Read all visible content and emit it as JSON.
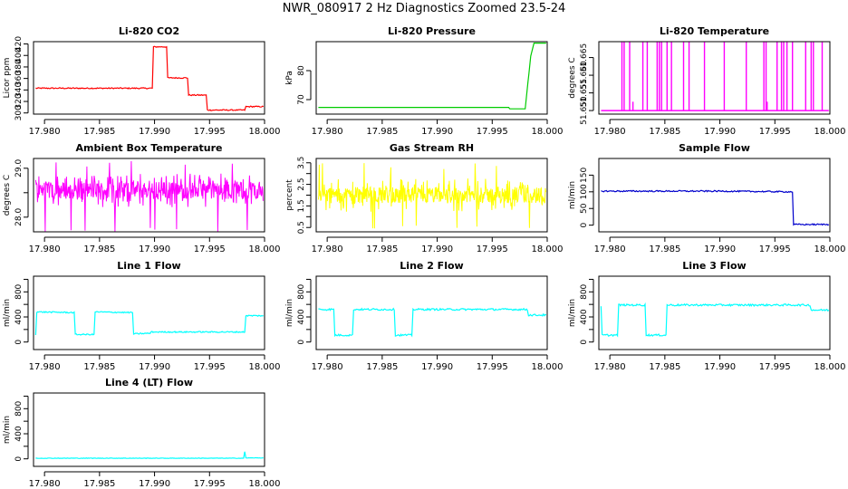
{
  "title": "NWR_080917  2 Hz Diagnostics Zoomed 23.5-24",
  "colors": {
    "red": "#ff0000",
    "green": "#00cc00",
    "magenta": "#ff00ff",
    "yellow": "#ffff00",
    "blue": "#0000cc",
    "cyan": "#00ffff",
    "frame": "#000000"
  },
  "chart_data": [
    {
      "type": "line",
      "title": "Li-820 CO2",
      "xlabel": "",
      "ylabel": "Licor ppm",
      "xlim": [
        17.979,
        18.0
      ],
      "ylim": [
        298,
        424
      ],
      "xticks": [
        "17.980",
        "17.985",
        "17.990",
        "17.995",
        "18.000"
      ],
      "yticks": [
        "300",
        "320",
        "340",
        "360",
        "380",
        "400",
        "420"
      ],
      "color": "red",
      "series": [
        {
          "x": [
            17.9792,
            17.9898,
            17.9899,
            17.9911,
            17.9912,
            17.993,
            17.9931,
            17.9947,
            17.9948,
            17.9982,
            17.9983,
            17.9999
          ],
          "y": [
            343,
            343,
            415,
            415,
            361,
            361,
            331,
            331,
            305,
            305,
            311,
            311
          ]
        }
      ],
      "noise_amplitude": 1
    },
    {
      "type": "line",
      "title": "Li-820 Pressure",
      "xlabel": "",
      "ylabel": "kPa",
      "xlim": [
        17.979,
        18.0
      ],
      "ylim": [
        65,
        90
      ],
      "xticks": [
        "17.980",
        "17.985",
        "17.990",
        "17.995",
        "18.000"
      ],
      "yticks": [
        "70",
        "80"
      ],
      "color": "green",
      "series": [
        {
          "x": [
            17.9792,
            17.9965,
            17.9966,
            17.998,
            17.9985,
            17.9988,
            17.9999
          ],
          "y": [
            67.3,
            67.3,
            66.8,
            66.8,
            85,
            89.5,
            89.5
          ]
        }
      ],
      "noise_amplitude": 0
    },
    {
      "type": "line",
      "title": "Li-820 Temperature",
      "xlabel": "",
      "ylabel": "degrees C",
      "xlim": [
        17.979,
        18.0
      ],
      "ylim": [
        51.649,
        51.6695
      ],
      "xticks": [
        "17.980",
        "17.985",
        "17.990",
        "17.995",
        "18.000"
      ],
      "yticks": [
        "51.650",
        "51.655",
        "51.660",
        "51.665"
      ],
      "color": "magenta",
      "baseline": 51.65,
      "spike_top": 51.6695,
      "spikes_x": [
        17.9811,
        17.9813,
        17.9818,
        17.983,
        17.9834,
        17.9843,
        17.9845,
        17.9847,
        17.9852,
        17.9856,
        17.9867,
        17.9872,
        17.9886,
        17.9904,
        17.9924,
        17.994,
        17.9942,
        17.9952,
        17.9956,
        17.9958,
        17.9961,
        17.9966,
        17.9978,
        17.9983,
        17.9985,
        17.9993
      ],
      "short_spikes": [
        {
          "x": 17.9821,
          "y": 51.6525
        },
        {
          "x": 17.9943,
          "y": 51.6525
        }
      ]
    },
    {
      "type": "line",
      "title": "Ambient Box Temperature",
      "xlabel": "",
      "ylabel": "degrees C",
      "xlim": [
        17.979,
        18.0
      ],
      "ylim": [
        27.7,
        29.2
      ],
      "xticks": [
        "17.980",
        "17.985",
        "17.990",
        "17.995",
        "18.000"
      ],
      "yticks": [
        "28.0",
        "",
        "29.0"
      ],
      "ytick_values": [
        28.0,
        28.5,
        29.0
      ],
      "color": "magenta",
      "noisy": {
        "mean": 28.55,
        "amplitude": 0.25,
        "outlier_low": 27.7,
        "outlier_high": 29.15
      }
    },
    {
      "type": "line",
      "title": "Gas Stream RH",
      "xlabel": "",
      "ylabel": "percent",
      "xlim": [
        17.979,
        18.0
      ],
      "ylim": [
        0.3,
        3.7
      ],
      "xticks": [
        "17.980",
        "17.985",
        "17.990",
        "17.995",
        "18.000"
      ],
      "yticks": [
        "0.5",
        "1.5",
        "2.5",
        "3.5"
      ],
      "ytick_values": [
        0.5,
        1.5,
        2.5,
        3.5
      ],
      "minor_yticks": [
        1.0,
        2.0,
        3.0
      ],
      "color": "yellow",
      "noisy": {
        "mean": 2.0,
        "amplitude": 0.55,
        "outlier_low": 0.45,
        "outlier_high": 3.5
      }
    },
    {
      "type": "line",
      "title": "Sample Flow",
      "xlabel": "",
      "ylabel": "ml/min",
      "xlim": [
        17.979,
        18.0
      ],
      "ylim": [
        -20,
        200
      ],
      "xticks": [
        "17.980",
        "17.985",
        "17.990",
        "17.995",
        "18.000"
      ],
      "yticks": [
        "0",
        "50",
        "100",
        "150"
      ],
      "color": "blue",
      "series": [
        {
          "x": [
            17.9792,
            17.99,
            17.9966,
            17.9967,
            17.9999
          ],
          "y": [
            102,
            102,
            100,
            2,
            2
          ]
        }
      ],
      "noise_amplitude": 2
    },
    {
      "type": "line",
      "title": "Line 1 Flow",
      "xlabel": "",
      "ylabel": "ml/min",
      "xlim": [
        17.979,
        18.0
      ],
      "ylim": [
        -120,
        1050
      ],
      "xticks": [
        "17.980",
        "17.985",
        "17.990",
        "17.995",
        "18.000"
      ],
      "yticks": [
        "0",
        "400",
        "800"
      ],
      "minor_yticks": [
        200,
        600,
        1000
      ],
      "color": "cyan",
      "series": [
        {
          "x": [
            17.9792,
            17.9793,
            17.9827,
            17.9828,
            17.9845,
            17.9846,
            17.988,
            17.9881,
            17.9896,
            17.9897,
            17.9982,
            17.9983,
            17.9999
          ],
          "y": [
            120,
            480,
            470,
            120,
            120,
            480,
            470,
            130,
            140,
            160,
            160,
            420,
            420
          ]
        }
      ],
      "noise_amplitude": 10
    },
    {
      "type": "line",
      "title": "Line 2 Flow",
      "xlabel": "",
      "ylabel": "ml/min",
      "xlim": [
        17.979,
        18.0
      ],
      "ylim": [
        -120,
        1050
      ],
      "xticks": [
        "17.980",
        "17.985",
        "17.990",
        "17.995",
        "18.000"
      ],
      "yticks": [
        "0",
        "400",
        "800"
      ],
      "minor_yticks": [
        200,
        600,
        1000
      ],
      "color": "cyan",
      "series": [
        {
          "x": [
            17.9792,
            17.9806,
            17.9807,
            17.9823,
            17.9824,
            17.9861,
            17.9862,
            17.9877,
            17.9878,
            17.9982,
            17.9983,
            17.9999
          ],
          "y": [
            520,
            520,
            110,
            110,
            520,
            520,
            110,
            110,
            520,
            520,
            430,
            430
          ]
        }
      ],
      "noise_amplitude": 15
    },
    {
      "type": "line",
      "title": "Line 3 Flow",
      "xlabel": "",
      "ylabel": "ml/min",
      "xlim": [
        17.979,
        18.0
      ],
      "ylim": [
        -120,
        1050
      ],
      "xticks": [
        "17.980",
        "17.985",
        "17.990",
        "17.995",
        "18.000"
      ],
      "yticks": [
        "0",
        "400",
        "800"
      ],
      "minor_yticks": [
        200,
        600,
        1000
      ],
      "color": "cyan",
      "series": [
        {
          "x": [
            17.9792,
            17.9793,
            17.9807,
            17.9808,
            17.9832,
            17.9833,
            17.9851,
            17.9852,
            17.9866,
            17.9867,
            17.9982,
            17.9983,
            17.9999
          ],
          "y": [
            560,
            110,
            110,
            590,
            590,
            110,
            110,
            590,
            590,
            590,
            590,
            510,
            510
          ]
        }
      ],
      "noise_amplitude": 15
    },
    {
      "type": "line",
      "title": "Line 4 (LT) Flow",
      "xlabel": "",
      "ylabel": "ml/min",
      "xlim": [
        17.979,
        18.0
      ],
      "ylim": [
        -120,
        1050
      ],
      "xticks": [
        "17.980",
        "17.985",
        "17.990",
        "17.995",
        "18.000"
      ],
      "yticks": [
        "0",
        "400",
        "800"
      ],
      "minor_yticks": [
        200,
        600,
        1000
      ],
      "color": "cyan",
      "series": [
        {
          "x": [
            17.9792,
            17.9981,
            17.9982,
            17.9983,
            17.9999
          ],
          "y": [
            10,
            10,
            110,
            15,
            15
          ]
        }
      ],
      "noise_amplitude": 4
    }
  ]
}
